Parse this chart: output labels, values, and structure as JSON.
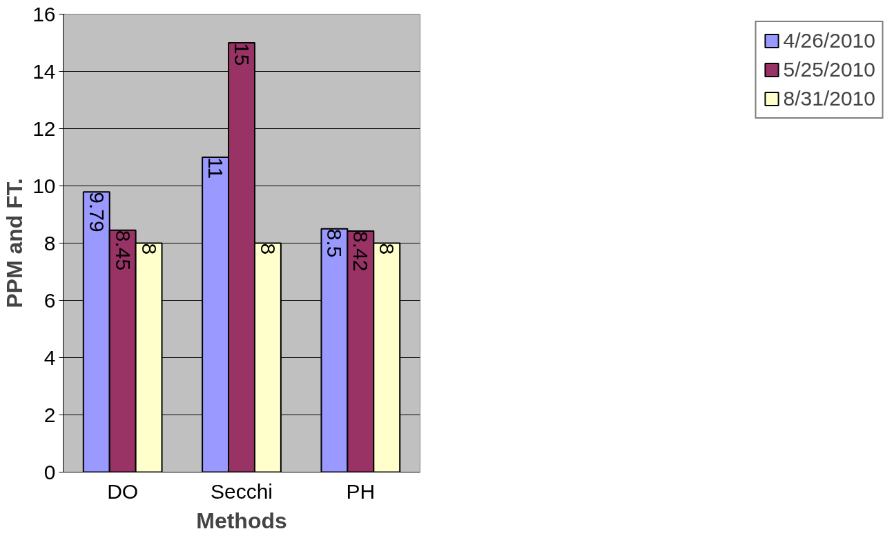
{
  "chart_data": {
    "type": "bar",
    "xlabel": "Methods",
    "ylabel": "PPM and FT.",
    "categories": [
      "DO",
      "Secchi",
      "PH"
    ],
    "series": [
      {
        "name": "4/26/2010",
        "color": "#9999ff",
        "values": [
          9.79,
          11,
          8.5
        ]
      },
      {
        "name": "5/25/2010",
        "color": "#993366",
        "values": [
          8.45,
          15,
          8.42
        ]
      },
      {
        "name": "8/31/2010",
        "color": "#ffffcc",
        "values": [
          8,
          8,
          8
        ]
      }
    ],
    "ylim": [
      0,
      16
    ],
    "yticks": [
      0,
      2,
      4,
      6,
      8,
      10,
      12,
      14,
      16
    ],
    "grid": "y",
    "legend": "right",
    "data_labels": true
  }
}
